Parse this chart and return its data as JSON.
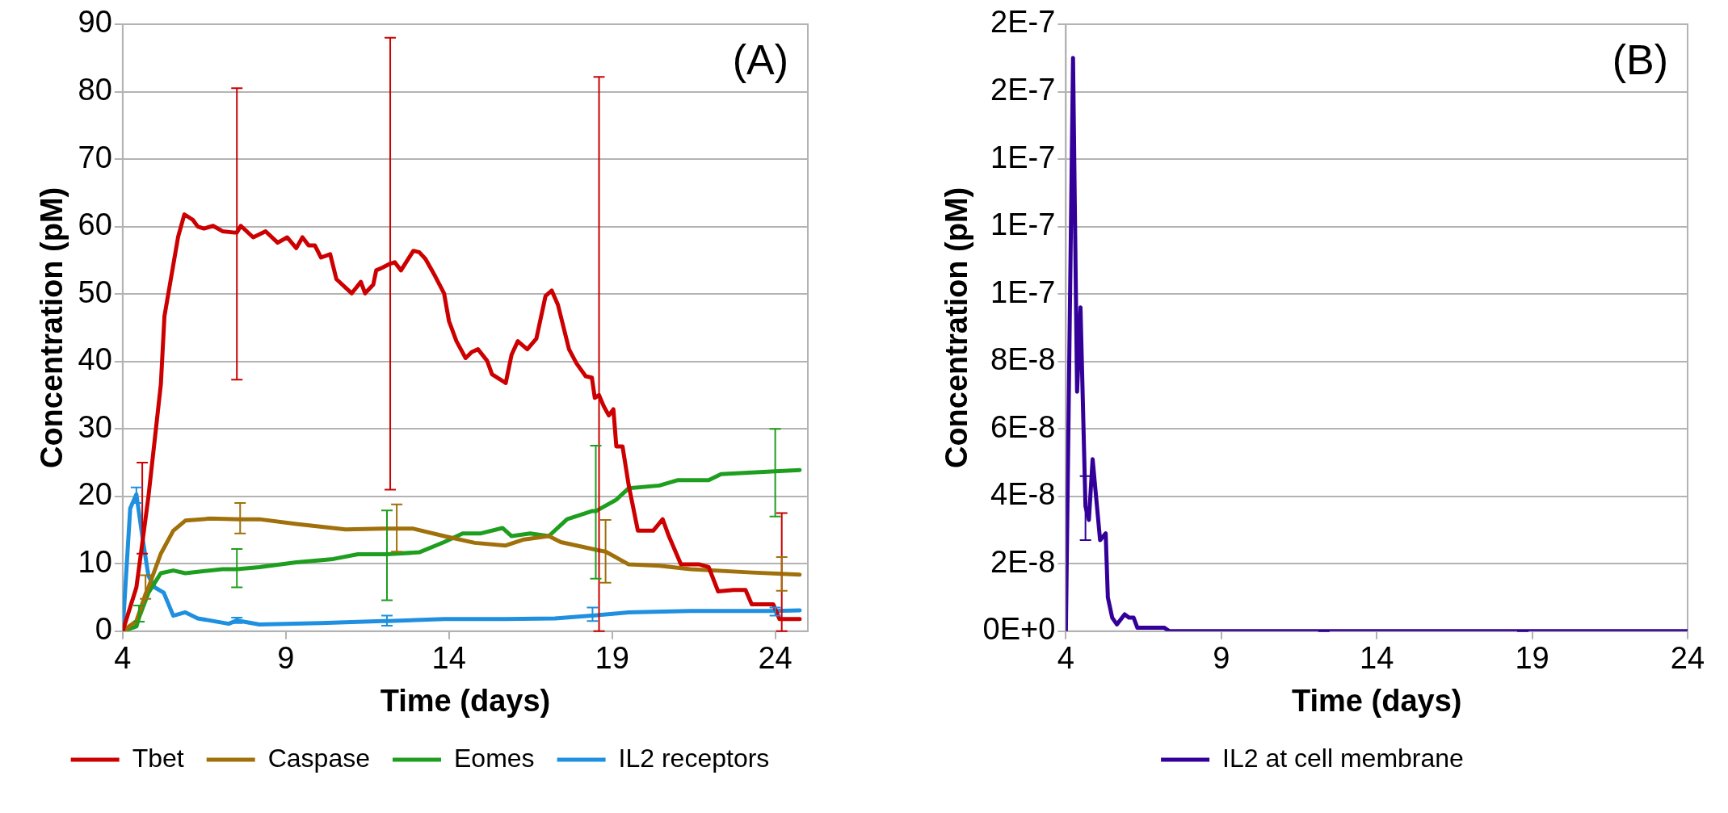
{
  "chart_data": [
    {
      "type": "line",
      "title": "(A)",
      "xlabel": "Time (days)",
      "ylabel": "Concentration (pM)",
      "xlim": [
        4,
        25
      ],
      "xticks": [
        4,
        9,
        14,
        19,
        24
      ],
      "ylim": [
        0,
        90
      ],
      "yticks": [
        0,
        10,
        20,
        30,
        40,
        50,
        60,
        70,
        80,
        90
      ],
      "grid": "y",
      "legend": "bottom",
      "line_style": "solid",
      "series": [
        {
          "name": "Tbet",
          "color": "#cc0000",
          "x": [
            4,
            4.42,
            4.6,
            4.79,
            5.17,
            5.28,
            5.7,
            5.89,
            6.15,
            6.3,
            6.49,
            6.77,
            7.06,
            7.43,
            7.5,
            7.62,
            8,
            8.38,
            8.75,
            9.04,
            9.32,
            9.51,
            9.7,
            9.89,
            10.08,
            10.36,
            10.55,
            11.02,
            11.3,
            11.43,
            11.68,
            11.77,
            11.96,
            12.2,
            12.34,
            12.53,
            12.91,
            13.09,
            13.28,
            13.57,
            13.85,
            14,
            14.23,
            14.51,
            14.7,
            14.89,
            15.17,
            15.32,
            15.74,
            15.92,
            16.11,
            16.4,
            16.68,
            16.96,
            17.15,
            17.34,
            17.68,
            17.91,
            18.19,
            18.38,
            18.47,
            18.6,
            18.75,
            18.9,
            19.04,
            19.13,
            19.32,
            19.51,
            19.79,
            20.26,
            20.55,
            20.74,
            21.11,
            21.68,
            21.96,
            22.25,
            22.72,
            23.09,
            23.28,
            23.94,
            24.13,
            24.2,
            24.75
          ],
          "values": [
            0,
            6.5,
            13,
            20,
            36.6,
            46.7,
            58.5,
            61.8,
            61,
            60,
            59.7,
            60.1,
            59.3,
            59.1,
            59.1,
            60.1,
            58.4,
            59.3,
            57.6,
            58.4,
            56.8,
            58.4,
            57.2,
            57.2,
            55.4,
            55.9,
            52.2,
            50.1,
            51.8,
            50.1,
            51.4,
            53.5,
            53.9,
            54.5,
            54.7,
            53.5,
            56.4,
            56.2,
            55.2,
            52.7,
            50.1,
            46,
            43,
            40.5,
            41.4,
            41.8,
            40.1,
            38.1,
            36.8,
            41,
            43,
            41.8,
            43.4,
            49.7,
            50.5,
            48.4,
            41.8,
            39.7,
            37.8,
            37.6,
            34.6,
            35,
            33.3,
            32,
            32.9,
            27.4,
            27.4,
            21.6,
            14.9,
            14.9,
            16.6,
            14.1,
            9.9,
            9.9,
            9.5,
            5.9,
            6.1,
            6.1,
            4,
            4,
            1.8,
            1.8,
            1.8
          ],
          "errors": [
            null,
            null,
            [
              11.5,
              25
            ],
            null,
            null,
            null,
            null,
            null,
            null,
            null,
            null,
            null,
            null,
            null,
            [
              37.3,
              80.5
            ],
            null,
            null,
            null,
            null,
            null,
            null,
            null,
            null,
            null,
            null,
            null,
            null,
            null,
            null,
            null,
            null,
            null,
            null,
            [
              21,
              88
            ],
            null,
            null,
            null,
            null,
            null,
            null,
            null,
            null,
            null,
            null,
            null,
            null,
            null,
            null,
            null,
            null,
            null,
            null,
            null,
            null,
            null,
            null,
            null,
            null,
            null,
            null,
            null,
            [
              0,
              82.2
            ],
            null,
            null,
            null,
            null,
            null,
            null,
            null,
            null,
            null,
            null,
            null,
            null,
            null,
            null,
            null,
            null,
            null,
            null,
            null,
            [
              0,
              17.5
            ],
            null
          ]
        },
        {
          "name": "Caspase",
          "color": "#a0700a",
          "x": [
            4,
            4.42,
            4.7,
            4.79,
            5.17,
            5.55,
            5.92,
            6.68,
            7.6,
            8.19,
            9.32,
            10.83,
            11.96,
            12.4,
            12.91,
            13.85,
            14.79,
            15.74,
            16.3,
            17.06,
            17.43,
            18.57,
            18.8,
            19.51,
            20.45,
            21.4,
            23.28,
            24.2,
            24.75
          ],
          "values": [
            0,
            1.5,
            5.5,
            6.5,
            11.5,
            14.9,
            16.4,
            16.7,
            16.6,
            16.6,
            15.9,
            15.1,
            15.2,
            15.2,
            15.2,
            14.1,
            13.1,
            12.7,
            13.6,
            14.1,
            13.2,
            12,
            11.8,
            9.9,
            9.7,
            9.2,
            8.7,
            8.5,
            8.4
          ],
          "errors": [
            null,
            null,
            [
              4.8,
              8.3
            ],
            null,
            null,
            null,
            null,
            null,
            [
              14.5,
              19
            ],
            null,
            null,
            null,
            null,
            [
              11.8,
              18.8
            ],
            null,
            null,
            null,
            null,
            null,
            null,
            null,
            null,
            [
              7.2,
              16.5
            ],
            null,
            null,
            null,
            null,
            [
              6,
              11
            ],
            null
          ]
        },
        {
          "name": "Eomes",
          "color": "#1e9e1e",
          "x": [
            4,
            4.42,
            4.5,
            4.79,
            5.17,
            5.55,
            5.92,
            7.06,
            7.5,
            8.19,
            9.32,
            10.45,
            11.21,
            11.96,
            12.1,
            13.09,
            13.85,
            14.42,
            14.98,
            15.64,
            15.92,
            16.49,
            17.06,
            17.62,
            18.38,
            18.5,
            19.13,
            19.51,
            20.45,
            21.02,
            21.96,
            22.34,
            24,
            24.75
          ],
          "values": [
            0,
            0.7,
            2,
            5.7,
            8.6,
            9,
            8.6,
            9.2,
            9.2,
            9.5,
            10.2,
            10.7,
            11.4,
            11.4,
            11.4,
            11.7,
            13.2,
            14.5,
            14.5,
            15.3,
            14.1,
            14.5,
            14.1,
            16.6,
            17.8,
            17.8,
            19.5,
            21.2,
            21.6,
            22.4,
            22.4,
            23.3,
            23.7,
            23.9
          ],
          "errors": [
            null,
            null,
            [
              1.4,
              3.8
            ],
            null,
            null,
            null,
            null,
            null,
            [
              6.5,
              12.2
            ],
            null,
            null,
            null,
            null,
            null,
            [
              4.6,
              17.9
            ],
            null,
            null,
            null,
            null,
            null,
            null,
            null,
            null,
            null,
            null,
            [
              7.8,
              27.5
            ],
            null,
            null,
            null,
            null,
            null,
            null,
            [
              17,
              30
            ],
            null
          ]
        },
        {
          "name": "IL2 receptors",
          "color": "#1f8fdf",
          "x": [
            4,
            4.23,
            4.42,
            4.6,
            4.79,
            4.98,
            5.26,
            5.55,
            5.92,
            6.3,
            7.25,
            7.5,
            8.19,
            10.08,
            11.96,
            12.1,
            13.85,
            15.74,
            17.25,
            18.38,
            18.4,
            19.51,
            21.4,
            24,
            24.75
          ],
          "values": [
            0,
            18.2,
            20.3,
            14.1,
            8.2,
            6.5,
            5.7,
            2.3,
            2.8,
            1.9,
            1.1,
            1.6,
            1,
            1.2,
            1.5,
            1.5,
            1.8,
            1.8,
            1.9,
            2.3,
            2.3,
            2.8,
            3,
            3,
            3.1
          ],
          "errors": [
            null,
            null,
            [
              19,
              21.3
            ],
            null,
            null,
            null,
            null,
            null,
            null,
            null,
            null,
            [
              1.2,
              2
            ],
            null,
            null,
            null,
            [
              0.8,
              2.3
            ],
            null,
            null,
            null,
            null,
            [
              1.5,
              3.5
            ],
            null,
            null,
            [
              2.3,
              3.5
            ],
            null
          ]
        }
      ]
    },
    {
      "type": "line",
      "title": "(B)",
      "xlabel": "Time (days)",
      "ylabel": "Concentration (pM)",
      "xlim": [
        4,
        24
      ],
      "xticks": [
        4,
        9,
        14,
        19,
        24
      ],
      "ylim": [
        0,
        1.8e-07
      ],
      "yticks": [
        {
          "value": 0,
          "label": "0E+0"
        },
        {
          "value": 2e-08,
          "label": "2E-8"
        },
        {
          "value": 4e-08,
          "label": "4E-8"
        },
        {
          "value": 6e-08,
          "label": "6E-8"
        },
        {
          "value": 8e-08,
          "label": "8E-8"
        },
        {
          "value": 1e-07,
          "label": "1E-7"
        },
        {
          "value": 1.2e-07,
          "label": "1E-7"
        },
        {
          "value": 1.4e-07,
          "label": "1E-7"
        },
        {
          "value": 1.6e-07,
          "label": "2E-7"
        },
        {
          "value": 1.8e-07,
          "label": "2E-7"
        }
      ],
      "grid": "y",
      "legend": "bottom",
      "line_style": "solid",
      "series": [
        {
          "name": "IL2 at cell membrane",
          "color": "#330099",
          "x": [
            4,
            4.23,
            4.36,
            4.47,
            4.63,
            4.74,
            4.86,
            5.1,
            5.28,
            5.35,
            5.49,
            5.64,
            5.89,
            6.03,
            6.18,
            6.3,
            6.66,
            6.93,
            7.17,
            7.33,
            12.3,
            18.7,
            24
          ],
          "values": [
            0,
            1.7e-07,
            7.1e-08,
            9.6e-08,
            3.7e-08,
            3.3e-08,
            5.1e-08,
            2.7e-08,
            2.9e-08,
            1e-08,
            4e-09,
            2e-09,
            5e-09,
            4e-09,
            4e-09,
            1e-09,
            1e-09,
            1e-09,
            1e-09,
            0,
            0,
            0,
            0
          ],
          "errors": [
            null,
            null,
            null,
            null,
            [
              2.7e-08,
              4.6e-08
            ],
            null,
            null,
            null,
            null,
            null,
            null,
            null,
            null,
            null,
            null,
            null,
            null,
            null,
            null,
            null,
            [
              0,
              0
            ],
            [
              0,
              0
            ],
            null
          ]
        }
      ]
    }
  ]
}
